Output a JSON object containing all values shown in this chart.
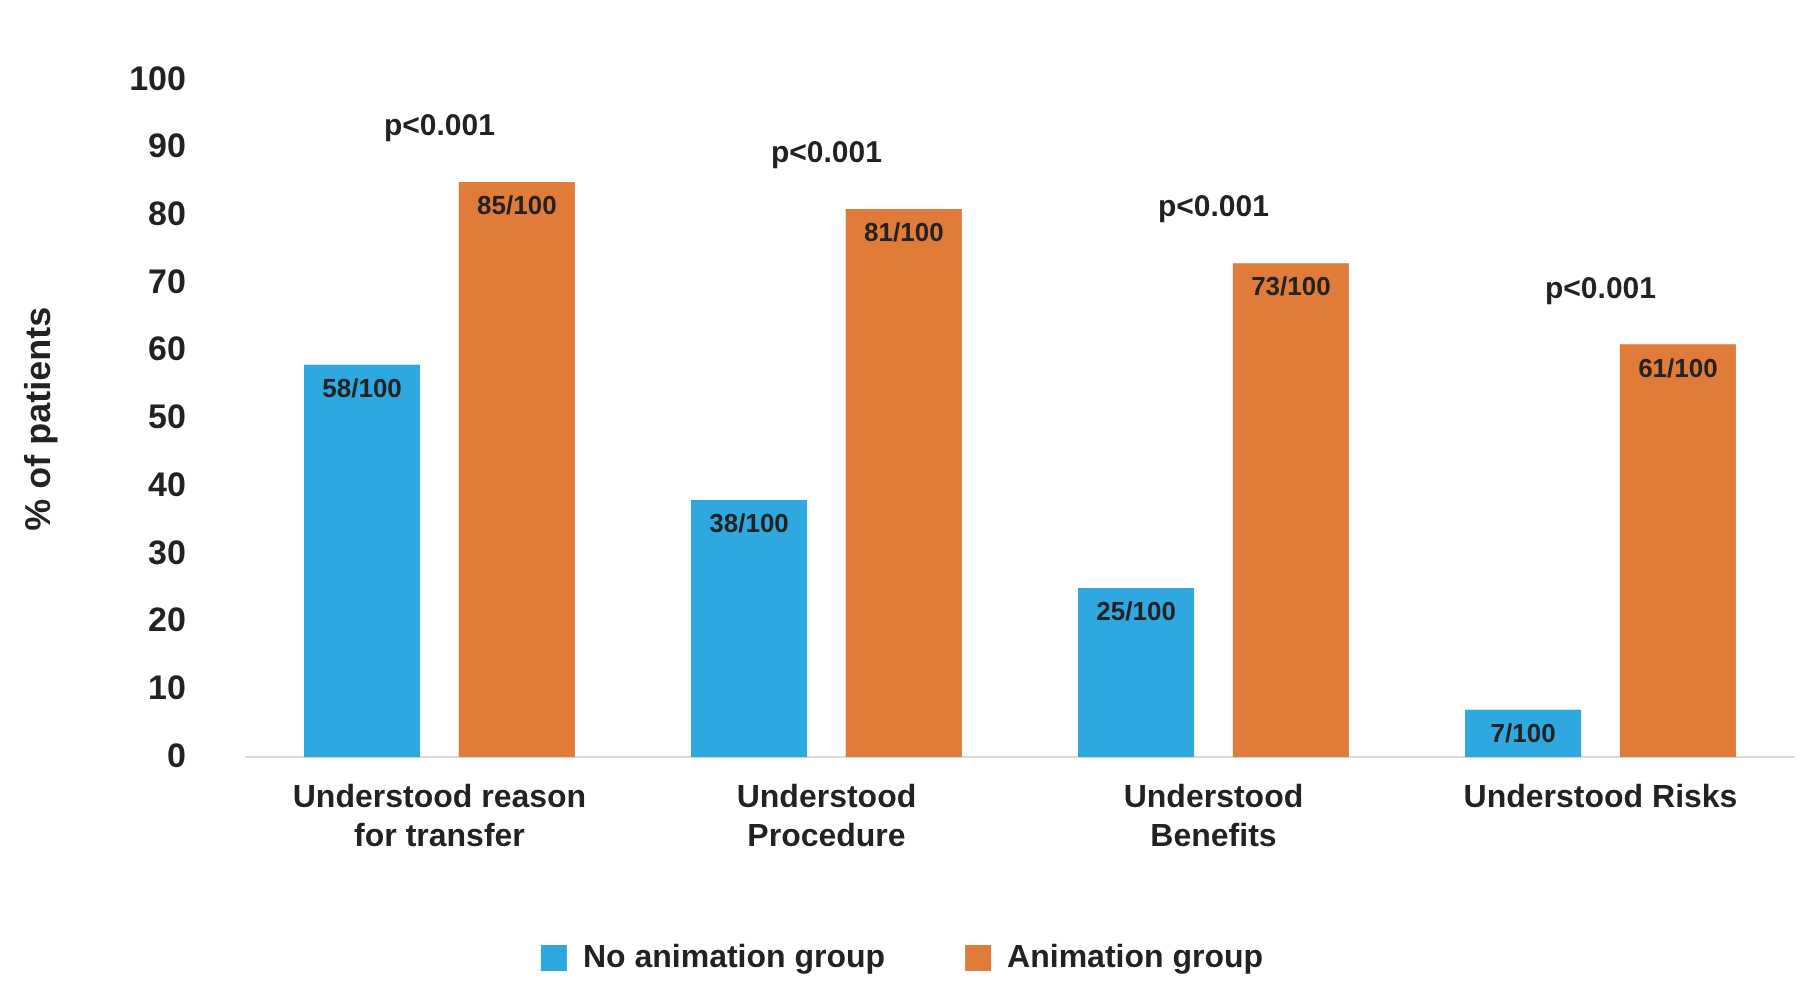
{
  "chart_data": {
    "type": "bar",
    "ylabel": "% of patients",
    "categories": [
      "Understood reason for transfer",
      "Understood Procedure",
      "Understood Benefits",
      "Understood Risks"
    ],
    "series": [
      {
        "name": "No animation group",
        "color": "#2ea8df",
        "values": [
          58,
          38,
          25,
          7
        ],
        "value_labels": [
          "58/100",
          "38/100",
          "25/100",
          "7/100"
        ]
      },
      {
        "name": "Animation group",
        "color": "#e07b39",
        "values": [
          85,
          81,
          73,
          61
        ],
        "value_labels": [
          "85/100",
          "81/100",
          "73/100",
          "61/100"
        ]
      }
    ],
    "ylim": [
      0,
      100
    ],
    "yticks": [
      0,
      10,
      20,
      30,
      40,
      50,
      60,
      70,
      80,
      90,
      100
    ],
    "grid": false,
    "legend": "bottom",
    "annotations": [
      "p<0.001",
      "p<0.001",
      "p<0.001",
      "p<0.001"
    ]
  }
}
